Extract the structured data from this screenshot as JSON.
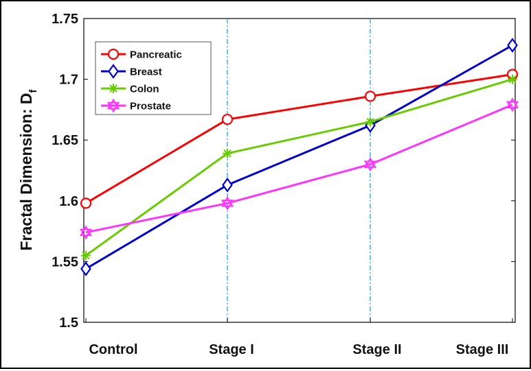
{
  "chart_data": {
    "type": "line",
    "title": "",
    "xlabel": "",
    "ylabel": "Fractal Dimension: D",
    "ylabel_subscript": "f",
    "categories": [
      "Control",
      "Stage I",
      "Stage II",
      "Stage III"
    ],
    "category_positions": [
      0,
      1,
      2,
      3
    ],
    "ylim": [
      1.5,
      1.75
    ],
    "yticks": [
      "1.5",
      "1.55",
      "1.6",
      "1.65",
      "1.7",
      "1.75"
    ],
    "grid": false,
    "legend_position": "top-left",
    "vertical_reference_lines_at": [
      "Stage I",
      "Stage II"
    ],
    "series": [
      {
        "name": "Pancreatic",
        "color": "#ff0000",
        "marker": "circle",
        "values": [
          1.598,
          1.667,
          1.686,
          1.704
        ]
      },
      {
        "name": "Breast",
        "color": "#0000cc",
        "marker": "diamond",
        "values": [
          1.544,
          1.613,
          1.662,
          1.728
        ]
      },
      {
        "name": "Colon",
        "color": "#66cc00",
        "marker": "asterisk",
        "values": [
          1.555,
          1.639,
          1.665,
          1.7
        ]
      },
      {
        "name": "Prostate",
        "color": "#ff33ff",
        "marker": "hexagram",
        "values": [
          1.574,
          1.598,
          1.63,
          1.679
        ]
      }
    ]
  }
}
